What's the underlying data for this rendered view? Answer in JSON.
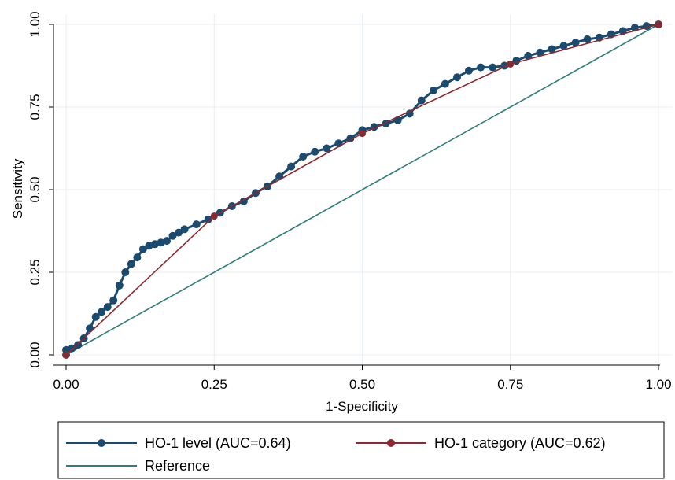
{
  "chart_data": {
    "type": "line",
    "xlabel": "1-Specificity",
    "ylabel": "Sensitivity",
    "xlim": [
      0,
      1
    ],
    "ylim": [
      0,
      1
    ],
    "xticks": [
      "0.00",
      "0.25",
      "0.50",
      "0.75",
      "1.00"
    ],
    "yticks": [
      "0.00",
      "0.25",
      "0.50",
      "0.75",
      "1.00"
    ],
    "grid": true,
    "legend_position": "bottom",
    "series": [
      {
        "name": "HO-1 level (AUC=0.64)",
        "color": "#1a4a6e",
        "marker": "circle",
        "points": [
          [
            0.0,
            0.0
          ],
          [
            0.0,
            0.015
          ],
          [
            0.01,
            0.02
          ],
          [
            0.02,
            0.03
          ],
          [
            0.03,
            0.05
          ],
          [
            0.04,
            0.08
          ],
          [
            0.05,
            0.115
          ],
          [
            0.06,
            0.13
          ],
          [
            0.07,
            0.145
          ],
          [
            0.08,
            0.165
          ],
          [
            0.09,
            0.21
          ],
          [
            0.1,
            0.25
          ],
          [
            0.11,
            0.275
          ],
          [
            0.12,
            0.295
          ],
          [
            0.13,
            0.32
          ],
          [
            0.14,
            0.33
          ],
          [
            0.15,
            0.335
          ],
          [
            0.16,
            0.34
          ],
          [
            0.17,
            0.345
          ],
          [
            0.18,
            0.36
          ],
          [
            0.19,
            0.37
          ],
          [
            0.2,
            0.38
          ],
          [
            0.22,
            0.395
          ],
          [
            0.24,
            0.41
          ],
          [
            0.26,
            0.43
          ],
          [
            0.28,
            0.45
          ],
          [
            0.3,
            0.465
          ],
          [
            0.32,
            0.49
          ],
          [
            0.34,
            0.51
          ],
          [
            0.36,
            0.54
          ],
          [
            0.38,
            0.57
          ],
          [
            0.4,
            0.6
          ],
          [
            0.42,
            0.615
          ],
          [
            0.44,
            0.625
          ],
          [
            0.46,
            0.64
          ],
          [
            0.48,
            0.655
          ],
          [
            0.5,
            0.68
          ],
          [
            0.52,
            0.69
          ],
          [
            0.54,
            0.7
          ],
          [
            0.56,
            0.71
          ],
          [
            0.58,
            0.73
          ],
          [
            0.6,
            0.77
          ],
          [
            0.62,
            0.8
          ],
          [
            0.64,
            0.82
          ],
          [
            0.66,
            0.84
          ],
          [
            0.68,
            0.86
          ],
          [
            0.7,
            0.87
          ],
          [
            0.72,
            0.87
          ],
          [
            0.74,
            0.875
          ],
          [
            0.76,
            0.89
          ],
          [
            0.78,
            0.905
          ],
          [
            0.8,
            0.915
          ],
          [
            0.82,
            0.925
          ],
          [
            0.84,
            0.935
          ],
          [
            0.86,
            0.945
          ],
          [
            0.88,
            0.955
          ],
          [
            0.9,
            0.96
          ],
          [
            0.92,
            0.97
          ],
          [
            0.94,
            0.98
          ],
          [
            0.96,
            0.99
          ],
          [
            0.98,
            0.995
          ],
          [
            1.0,
            1.0
          ]
        ]
      },
      {
        "name": "HO-1 category (AUC=0.62)",
        "color": "#8b2a30",
        "marker": "circle",
        "points": [
          [
            0.0,
            0.0
          ],
          [
            0.25,
            0.42
          ],
          [
            0.5,
            0.67
          ],
          [
            0.75,
            0.88
          ],
          [
            1.0,
            1.0
          ]
        ]
      },
      {
        "name": "Reference",
        "color": "#2e7d78",
        "marker": "none",
        "points": [
          [
            0.0,
            0.0
          ],
          [
            1.0,
            1.0
          ]
        ]
      }
    ]
  }
}
